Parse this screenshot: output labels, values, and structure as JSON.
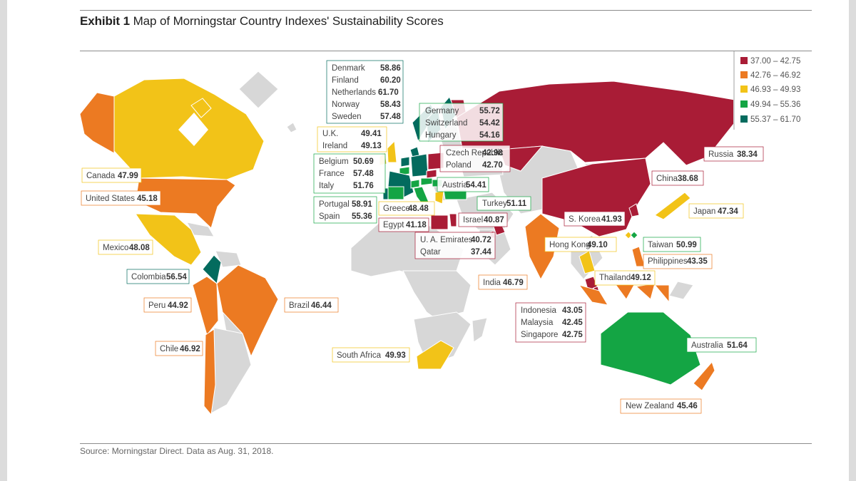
{
  "exhibit": "Exhibit 1",
  "title": "Map of Morningstar Country Indexes' Sustainability Scores",
  "source": "Source: Morningstar Direct. Data as Aug. 31, 2018.",
  "legend": [
    {
      "range": "37.00 – 42.75",
      "color": "#a91c36"
    },
    {
      "range": "42.76 – 46.92",
      "color": "#ec7a22"
    },
    {
      "range": "46.93 – 49.93",
      "color": "#f2c318"
    },
    {
      "range": "49.94 – 55.36",
      "color": "#14a544"
    },
    {
      "range": "55.37 – 61.70",
      "color": "#036b5e"
    }
  ],
  "countries": {
    "denmark": {
      "name": "Denmark",
      "score": "58.86"
    },
    "finland": {
      "name": "Finland",
      "score": "60.20"
    },
    "netherlands": {
      "name": "Netherlands",
      "score": "61.70"
    },
    "norway": {
      "name": "Norway",
      "score": "58.43"
    },
    "sweden": {
      "name": "Sweden",
      "score": "57.48"
    },
    "germany": {
      "name": "Germany",
      "score": "55.72"
    },
    "switzerland": {
      "name": "Switzerland",
      "score": "54.42"
    },
    "hungary": {
      "name": "Hungary",
      "score": "54.16"
    },
    "uk": {
      "name": "U.K.",
      "score": "49.41"
    },
    "ireland": {
      "name": "Ireland",
      "score": "49.13"
    },
    "czech": {
      "name": "Czech Republic",
      "score": "42.98"
    },
    "poland": {
      "name": "Poland",
      "score": "42.70"
    },
    "belgium": {
      "name": "Belgium",
      "score": "50.69"
    },
    "france": {
      "name": "France",
      "score": "57.48"
    },
    "italy": {
      "name": "Italy",
      "score": "51.76"
    },
    "austria": {
      "name": "Austria",
      "score": "54.41"
    },
    "portugal": {
      "name": "Portugal",
      "score": "58.91"
    },
    "spain": {
      "name": "Spain",
      "score": "55.36"
    },
    "greece": {
      "name": "Greece",
      "score": "48.48"
    },
    "turkey": {
      "name": "Turkey",
      "score": "51.11"
    },
    "egypt": {
      "name": "Egypt",
      "score": "41.18"
    },
    "israel": {
      "name": "Israel",
      "score": "40.87"
    },
    "uae": {
      "name": "U. A. Emirates",
      "score": "40.72"
    },
    "qatar": {
      "name": "Qatar",
      "score": "37.44"
    },
    "russia": {
      "name": "Russia",
      "score": "38.34"
    },
    "china": {
      "name": "China",
      "score": "38.68"
    },
    "japan": {
      "name": "Japan",
      "score": "47.34"
    },
    "skorea": {
      "name": "S. Korea",
      "score": "41.93"
    },
    "hongkong": {
      "name": "Hong Kong",
      "score": "49.10"
    },
    "taiwan": {
      "name": "Taiwan",
      "score": "50.99"
    },
    "philippines": {
      "name": "Philippines",
      "score": "43.35"
    },
    "thailand": {
      "name": "Thailand",
      "score": "49.12"
    },
    "india": {
      "name": "India",
      "score": "46.79"
    },
    "indonesia": {
      "name": "Indonesia",
      "score": "43.05"
    },
    "malaysia": {
      "name": "Malaysia",
      "score": "42.45"
    },
    "singapore": {
      "name": "Singapore",
      "score": "42.75"
    },
    "australia": {
      "name": "Australia",
      "score": "51.64"
    },
    "newzealand": {
      "name": "New Zealand",
      "score": "45.46"
    },
    "southafrica": {
      "name": "South Africa",
      "score": "49.93"
    },
    "canada": {
      "name": "Canada",
      "score": "47.99"
    },
    "us": {
      "name": "United States",
      "score": "45.18"
    },
    "mexico": {
      "name": "Mexico",
      "score": "48.08"
    },
    "colombia": {
      "name": "Colombia",
      "score": "56.54"
    },
    "peru": {
      "name": "Peru",
      "score": "44.92"
    },
    "brazil": {
      "name": "Brazil",
      "score": "46.44"
    },
    "chile": {
      "name": "Chile",
      "score": "46.92"
    }
  }
}
